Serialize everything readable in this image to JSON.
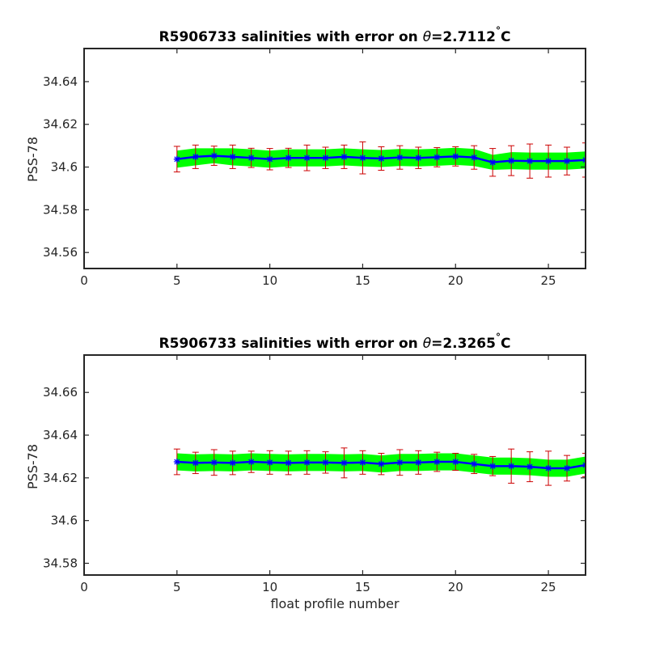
{
  "chart_data": [
    {
      "type": "line",
      "title_prefix": "R5906733 salinities with error on ",
      "title_symbol": "θ",
      "title_value": "=2.7112",
      "title_degree": "°",
      "title_unit": "C",
      "xlabel": "",
      "ylabel": "PSS-78",
      "xlim": [
        0,
        27
      ],
      "ylim": [
        34.5525,
        34.6555
      ],
      "xticks": [
        0,
        5,
        10,
        15,
        20,
        25
      ],
      "yticks": [
        34.56,
        34.58,
        34.6,
        34.62,
        34.64
      ],
      "ytick_labels": [
        "34.56",
        "34.58",
        "34.6",
        "34.62",
        "34.64"
      ],
      "x": [
        5,
        6,
        7,
        8,
        9,
        10,
        11,
        12,
        13,
        14,
        15,
        16,
        17,
        18,
        19,
        20,
        21,
        22,
        23,
        24,
        25,
        26,
        27
      ],
      "y": [
        34.6037,
        34.6048,
        34.6053,
        34.6048,
        34.6043,
        34.6037,
        34.6043,
        34.6043,
        34.6043,
        34.6048,
        34.6043,
        34.604,
        34.6045,
        34.6043,
        34.6046,
        34.605,
        34.6045,
        34.6022,
        34.603,
        34.6028,
        34.6028,
        34.6028,
        34.6033
      ],
      "error": [
        0.006,
        0.0055,
        0.0045,
        0.0055,
        0.0045,
        0.005,
        0.0045,
        0.006,
        0.005,
        0.0055,
        0.0075,
        0.0055,
        0.0055,
        0.005,
        0.0045,
        0.0045,
        0.0055,
        0.0065,
        0.007,
        0.008,
        0.0075,
        0.0065,
        0.008
      ],
      "band_halfwidth": [
        0.004,
        0.004,
        0.0035,
        0.004,
        0.004,
        0.004,
        0.004,
        0.004,
        0.004,
        0.004,
        0.004,
        0.004,
        0.004,
        0.004,
        0.004,
        0.004,
        0.004,
        0.0035,
        0.004,
        0.004,
        0.004,
        0.004,
        0.004
      ],
      "grid": false
    },
    {
      "type": "line",
      "title_prefix": "R5906733 salinities with error on ",
      "title_symbol": "θ",
      "title_value": "=2.3265",
      "title_degree": "°",
      "title_unit": "C",
      "xlabel": "float profile number",
      "ylabel": "PSS-78",
      "xlim": [
        0,
        27
      ],
      "ylim": [
        34.5745,
        34.6775
      ],
      "xticks": [
        0,
        5,
        10,
        15,
        20,
        25
      ],
      "yticks": [
        34.58,
        34.6,
        34.62,
        34.64,
        34.66
      ],
      "ytick_labels": [
        "34.58",
        "34.6",
        "34.62",
        "34.64",
        "34.66"
      ],
      "x": [
        5,
        6,
        7,
        8,
        9,
        10,
        11,
        12,
        13,
        14,
        15,
        16,
        17,
        18,
        19,
        20,
        21,
        22,
        23,
        24,
        25,
        26,
        27
      ],
      "y": [
        34.6275,
        34.627,
        34.6272,
        34.627,
        34.6275,
        34.6272,
        34.627,
        34.6272,
        34.6272,
        34.627,
        34.6272,
        34.6265,
        34.6272,
        34.6272,
        34.6275,
        34.6275,
        34.6265,
        34.6255,
        34.6255,
        34.6252,
        34.6245,
        34.6245,
        34.626
      ],
      "error": [
        0.006,
        0.005,
        0.006,
        0.0055,
        0.005,
        0.0055,
        0.0055,
        0.0055,
        0.005,
        0.007,
        0.0055,
        0.005,
        0.006,
        0.0055,
        0.0045,
        0.004,
        0.0045,
        0.0045,
        0.008,
        0.007,
        0.008,
        0.006,
        0.0055
      ],
      "band_halfwidth": [
        0.004,
        0.004,
        0.004,
        0.004,
        0.004,
        0.004,
        0.004,
        0.004,
        0.004,
        0.004,
        0.004,
        0.004,
        0.004,
        0.004,
        0.004,
        0.004,
        0.004,
        0.004,
        0.004,
        0.004,
        0.004,
        0.004,
        0.004
      ],
      "grid": false
    }
  ],
  "colors": {
    "band": "#00ff00",
    "line": "#0000ff",
    "marker": "#0000ff",
    "errorbar": "#cc0000",
    "axes": "#262626"
  }
}
